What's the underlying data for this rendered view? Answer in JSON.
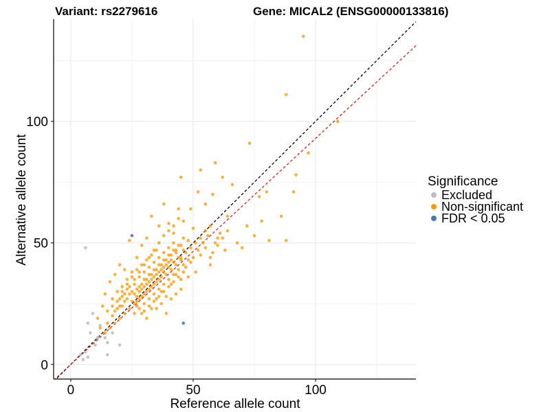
{
  "chart_data": {
    "type": "scatter",
    "title_left": "Variant: rs2279616",
    "title_right": "Gene: MICAL2 (ENSG00000133816)",
    "xlabel": "Reference allele count",
    "ylabel": "Alternative allele count",
    "xlim": [
      -7,
      141
    ],
    "ylim": [
      -6,
      142
    ],
    "xticks": [
      0,
      50,
      100
    ],
    "yticks": [
      0,
      50,
      100
    ],
    "grid": true,
    "legend": {
      "title": "Significance",
      "placement": "right",
      "entries": [
        {
          "label": "Excluded",
          "color": "#bebebe"
        },
        {
          "label": "Non-significant",
          "color": "#ff9900"
        },
        {
          "label": "FDR < 0.05",
          "color": "#4a78b0"
        }
      ]
    },
    "reference_lines": [
      {
        "name": "identity",
        "slope": 1.0,
        "intercept": 0,
        "color": "#000000",
        "style": "dashed"
      },
      {
        "name": "fit",
        "slope": 0.93,
        "intercept": 0,
        "color": "#e8201a",
        "style": "dashed"
      }
    ],
    "series": [
      {
        "name": "Excluded",
        "color": "#bebebe",
        "points": [
          [
            6,
            48
          ],
          [
            7,
            17
          ],
          [
            9,
            21
          ],
          [
            8,
            13
          ],
          [
            11,
            11
          ],
          [
            10,
            8
          ],
          [
            15,
            9
          ],
          [
            15,
            4
          ],
          [
            4,
            4
          ],
          [
            7,
            3
          ],
          [
            6,
            5
          ],
          [
            14,
            11
          ],
          [
            17,
            13
          ],
          [
            20,
            8
          ],
          [
            12,
            16
          ],
          [
            5,
            2
          ]
        ]
      },
      {
        "name": "FDR < 0.05",
        "color": "#4a78b0",
        "points": [
          [
            25,
            53
          ],
          [
            46,
            17
          ]
        ]
      },
      {
        "name": "Non-significant",
        "color": "#ff9900",
        "points": [
          [
            95,
            135
          ],
          [
            88,
            111
          ],
          [
            109,
            100
          ],
          [
            97,
            87
          ],
          [
            73,
            91
          ],
          [
            80,
            71
          ],
          [
            92,
            78
          ],
          [
            91,
            71
          ],
          [
            59,
            83
          ],
          [
            53,
            80
          ],
          [
            45,
            77
          ],
          [
            77,
            69
          ],
          [
            86,
            61
          ],
          [
            88,
            51
          ],
          [
            75,
            53
          ],
          [
            81,
            51
          ],
          [
            70,
            48
          ],
          [
            78,
            59
          ],
          [
            62,
            77
          ],
          [
            66,
            74
          ],
          [
            58,
            70
          ],
          [
            64,
            61
          ],
          [
            72,
            57
          ],
          [
            55,
            66
          ],
          [
            52,
            71
          ],
          [
            49,
            64
          ],
          [
            60,
            52
          ],
          [
            68,
            50
          ],
          [
            57,
            44
          ],
          [
            63,
            47
          ],
          [
            44,
            64
          ],
          [
            46,
            59
          ],
          [
            38,
            66
          ],
          [
            40,
            58
          ],
          [
            36,
            57
          ],
          [
            42,
            54
          ],
          [
            33,
            61
          ],
          [
            31,
            52
          ],
          [
            29,
            49
          ],
          [
            35,
            47
          ],
          [
            27,
            44
          ],
          [
            24,
            51
          ],
          [
            22,
            39
          ],
          [
            20,
            41
          ],
          [
            18,
            37
          ],
          [
            16,
            34
          ],
          [
            14,
            29
          ],
          [
            13,
            24
          ],
          [
            11,
            19
          ],
          [
            12,
            15
          ],
          [
            15,
            17
          ],
          [
            17,
            20
          ],
          [
            19,
            23
          ],
          [
            21,
            28
          ],
          [
            23,
            31
          ],
          [
            25,
            26
          ],
          [
            27,
            24
          ],
          [
            29,
            21
          ],
          [
            31,
            19
          ],
          [
            33,
            23
          ],
          [
            35,
            27
          ],
          [
            37,
            30
          ],
          [
            39,
            28
          ],
          [
            41,
            33
          ],
          [
            43,
            37
          ],
          [
            45,
            35
          ],
          [
            47,
            40
          ],
          [
            49,
            42
          ],
          [
            51,
            38
          ],
          [
            53,
            45
          ],
          [
            55,
            48
          ],
          [
            57,
            41
          ],
          [
            59,
            50
          ],
          [
            61,
            54
          ],
          [
            50,
            56
          ],
          [
            48,
            51
          ],
          [
            46,
            47
          ],
          [
            44,
            44
          ],
          [
            42,
            42
          ],
          [
            40,
            40
          ],
          [
            38,
            38
          ],
          [
            36,
            35
          ],
          [
            34,
            33
          ],
          [
            32,
            31
          ],
          [
            30,
            29
          ],
          [
            28,
            27
          ],
          [
            26,
            25
          ],
          [
            24,
            23
          ],
          [
            22,
            21
          ],
          [
            20,
            19
          ],
          [
            18,
            17
          ],
          [
            16,
            15
          ],
          [
            14,
            13
          ],
          [
            26,
            33
          ],
          [
            28,
            36
          ],
          [
            30,
            38
          ],
          [
            32,
            40
          ],
          [
            34,
            42
          ],
          [
            36,
            44
          ],
          [
            38,
            46
          ],
          [
            40,
            48
          ],
          [
            42,
            50
          ],
          [
            24,
            29
          ],
          [
            22,
            26
          ],
          [
            20,
            24
          ],
          [
            18,
            22
          ],
          [
            30,
            25
          ],
          [
            32,
            27
          ],
          [
            34,
            29
          ],
          [
            36,
            31
          ],
          [
            38,
            33
          ],
          [
            40,
            35
          ],
          [
            42,
            37
          ],
          [
            44,
            39
          ],
          [
            46,
            41
          ],
          [
            48,
            43
          ],
          [
            27,
            31
          ],
          [
            29,
            33
          ],
          [
            31,
            35
          ],
          [
            33,
            37
          ],
          [
            35,
            39
          ],
          [
            37,
            41
          ],
          [
            39,
            43
          ],
          [
            41,
            45
          ],
          [
            43,
            47
          ],
          [
            45,
            49
          ],
          [
            23,
            35
          ],
          [
            25,
            38
          ],
          [
            21,
            32
          ],
          [
            19,
            30
          ],
          [
            17,
            27
          ],
          [
            35,
            23
          ],
          [
            37,
            25
          ],
          [
            39,
            21
          ],
          [
            41,
            27
          ],
          [
            43,
            29
          ],
          [
            45,
            31
          ],
          [
            28,
            30
          ],
          [
            30,
            32
          ],
          [
            32,
            34
          ],
          [
            34,
            36
          ],
          [
            36,
            38
          ],
          [
            38,
            40
          ],
          [
            40,
            42
          ],
          [
            33,
            45
          ],
          [
            31,
            43
          ],
          [
            29,
            41
          ],
          [
            27,
            39
          ],
          [
            25,
            36
          ],
          [
            23,
            33
          ],
          [
            21,
            30
          ],
          [
            26,
            21
          ],
          [
            28,
            23
          ],
          [
            30,
            22
          ],
          [
            32,
            24
          ],
          [
            34,
            26
          ],
          [
            36,
            28
          ],
          [
            38,
            30
          ],
          [
            40,
            32
          ],
          [
            42,
            34
          ],
          [
            44,
            36
          ],
          [
            46,
            38
          ],
          [
            48,
            36
          ],
          [
            50,
            44
          ],
          [
            52,
            47
          ],
          [
            54,
            50
          ],
          [
            56,
            53
          ],
          [
            58,
            46
          ],
          [
            60,
            49
          ],
          [
            62,
            52
          ],
          [
            64,
            55
          ],
          [
            20,
            27
          ],
          [
            22,
            29
          ],
          [
            24,
            32
          ],
          [
            26,
            35
          ],
          [
            28,
            38
          ],
          [
            30,
            41
          ],
          [
            32,
            44
          ],
          [
            34,
            47
          ],
          [
            36,
            50
          ],
          [
            38,
            53
          ],
          [
            40,
            55
          ],
          [
            42,
            57
          ],
          [
            44,
            60
          ],
          [
            15,
            22
          ],
          [
            17,
            24
          ],
          [
            19,
            26
          ],
          [
            21,
            24
          ],
          [
            23,
            27
          ],
          [
            25,
            30
          ],
          [
            27,
            28
          ],
          [
            29,
            31
          ],
          [
            31,
            33
          ],
          [
            33,
            35
          ],
          [
            35,
            37
          ],
          [
            37,
            39
          ],
          [
            39,
            41
          ],
          [
            41,
            43
          ],
          [
            43,
            46
          ],
          [
            45,
            44
          ],
          [
            47,
            46
          ],
          [
            49,
            48
          ],
          [
            51,
            50
          ],
          [
            53,
            52
          ],
          [
            55,
            55
          ],
          [
            57,
            57
          ],
          [
            37,
            36
          ],
          [
            35,
            34
          ],
          [
            33,
            32
          ],
          [
            31,
            30
          ],
          [
            29,
            28
          ],
          [
            27,
            26
          ],
          [
            39,
            37
          ],
          [
            41,
            39
          ],
          [
            43,
            41
          ],
          [
            45,
            43
          ],
          [
            26,
            29
          ],
          [
            28,
            32
          ],
          [
            30,
            35
          ],
          [
            32,
            37
          ],
          [
            34,
            39
          ],
          [
            36,
            41
          ],
          [
            38,
            43
          ],
          [
            40,
            45
          ],
          [
            42,
            47
          ],
          [
            44,
            49
          ],
          [
            46,
            52
          ]
        ]
      }
    ]
  }
}
